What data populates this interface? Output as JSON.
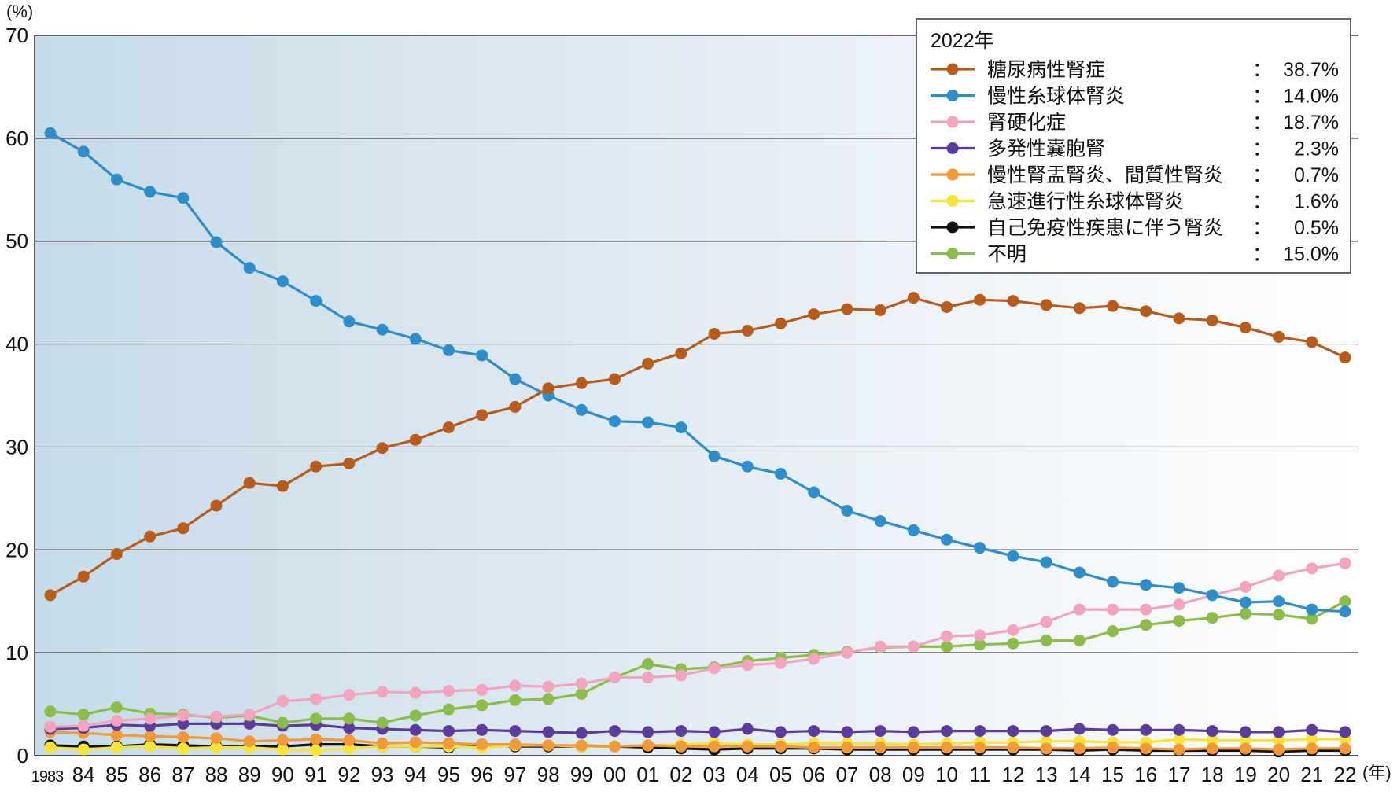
{
  "chart_data": {
    "type": "line",
    "ylabel_unit": "(%)",
    "xlabel_unit": "(年)",
    "ylim": [
      0,
      70
    ],
    "yticks": [
      0,
      10,
      20,
      30,
      40,
      50,
      60,
      70
    ],
    "grid": true,
    "categories": [
      "1983",
      "84",
      "85",
      "86",
      "87",
      "88",
      "89",
      "90",
      "91",
      "92",
      "93",
      "94",
      "95",
      "96",
      "97",
      "98",
      "99",
      "00",
      "01",
      "02",
      "03",
      "04",
      "05",
      "06",
      "07",
      "08",
      "09",
      "10",
      "11",
      "12",
      "13",
      "14",
      "15",
      "16",
      "17",
      "18",
      "19",
      "20",
      "21",
      "22"
    ],
    "legend_title": "2022年",
    "legend_position": "top-right",
    "series": [
      {
        "name": "糖尿病性腎症",
        "value_2022": "38.7%",
        "color": "#b85c1e",
        "values": [
          15.6,
          17.4,
          19.6,
          21.3,
          22.1,
          24.3,
          26.5,
          26.2,
          28.1,
          28.4,
          29.9,
          30.7,
          31.9,
          33.1,
          33.9,
          35.7,
          36.2,
          36.6,
          38.1,
          39.1,
          41.0,
          41.3,
          42.0,
          42.9,
          43.4,
          43.3,
          44.5,
          43.6,
          44.3,
          44.2,
          43.8,
          43.5,
          43.7,
          43.2,
          42.5,
          42.3,
          41.6,
          40.7,
          40.2,
          38.7
        ]
      },
      {
        "name": "慢性糸球体腎炎",
        "value_2022": "14.0%",
        "color": "#2f8dc9",
        "values": [
          60.5,
          58.7,
          56.0,
          54.8,
          54.2,
          49.9,
          47.4,
          46.1,
          44.2,
          42.2,
          41.4,
          40.5,
          39.4,
          38.9,
          36.6,
          35.0,
          33.6,
          32.5,
          32.4,
          31.9,
          29.1,
          28.1,
          27.4,
          25.6,
          23.8,
          22.8,
          21.9,
          21.0,
          20.2,
          19.4,
          18.8,
          17.8,
          16.9,
          16.6,
          16.3,
          15.6,
          14.9,
          15.0,
          14.2,
          14.0
        ]
      },
      {
        "name": "腎硬化症",
        "value_2022": "18.7%",
        "color": "#f2a3bd",
        "values": [
          2.8,
          2.9,
          3.4,
          3.6,
          3.9,
          3.8,
          4.0,
          5.3,
          5.5,
          5.9,
          6.2,
          6.1,
          6.3,
          6.4,
          6.8,
          6.7,
          7.0,
          7.6,
          7.6,
          7.8,
          8.5,
          8.8,
          9.0,
          9.4,
          10.0,
          10.6,
          10.6,
          11.6,
          11.7,
          12.2,
          13.0,
          14.2,
          14.2,
          14.2,
          14.7,
          15.6,
          16.4,
          17.5,
          18.2,
          18.7
        ]
      },
      {
        "name": "多発性嚢胞腎",
        "value_2022": "2.3%",
        "color": "#5c3c9a",
        "values": [
          2.6,
          2.7,
          3.0,
          2.9,
          3.1,
          3.1,
          3.1,
          2.9,
          3.0,
          2.7,
          2.6,
          2.5,
          2.4,
          2.5,
          2.4,
          2.3,
          2.2,
          2.4,
          2.3,
          2.4,
          2.3,
          2.6,
          2.3,
          2.4,
          2.3,
          2.4,
          2.3,
          2.4,
          2.4,
          2.4,
          2.4,
          2.6,
          2.5,
          2.5,
          2.5,
          2.4,
          2.3,
          2.3,
          2.5,
          2.3
        ]
      },
      {
        "name": "慢性腎盂腎炎、間質性腎炎",
        "value_2022": "0.7%",
        "color": "#f29a3a",
        "values": [
          2.3,
          2.2,
          2.0,
          1.9,
          1.8,
          1.7,
          1.4,
          1.5,
          1.6,
          1.5,
          1.2,
          1.3,
          1.2,
          1.1,
          1.1,
          1.0,
          1.0,
          0.9,
          1.0,
          0.9,
          0.9,
          0.9,
          0.9,
          0.8,
          0.8,
          0.8,
          0.8,
          0.8,
          0.8,
          0.8,
          0.7,
          0.7,
          0.8,
          0.7,
          0.6,
          0.7,
          0.7,
          0.6,
          0.7,
          0.7
        ]
      },
      {
        "name": "急速進行性糸球体腎炎",
        "value_2022": "1.6%",
        "color": "#f7e43a",
        "values": [
          0.8,
          0.6,
          0.8,
          0.9,
          0.7,
          0.8,
          0.8,
          0.6,
          0.5,
          0.7,
          0.9,
          0.9,
          0.9,
          0.8,
          1.0,
          1.0,
          0.9,
          0.9,
          1.0,
          1.1,
          1.2,
          1.1,
          1.1,
          1.2,
          1.2,
          1.2,
          1.1,
          1.2,
          1.3,
          1.3,
          1.4,
          1.4,
          1.3,
          1.3,
          1.6,
          1.5,
          1.5,
          1.5,
          1.6,
          1.6
        ]
      },
      {
        "name": "自己免疫性疾患に伴う腎炎",
        "value_2022": "0.5%",
        "color": "#111111",
        "values": [
          1.0,
          0.9,
          0.9,
          1.1,
          1.0,
          0.9,
          0.9,
          0.9,
          1.1,
          1.1,
          0.9,
          0.9,
          0.8,
          1.1,
          0.9,
          0.9,
          0.9,
          0.9,
          0.8,
          0.7,
          0.6,
          0.7,
          0.7,
          0.7,
          0.6,
          0.6,
          0.6,
          0.6,
          0.6,
          0.6,
          0.6,
          0.5,
          0.6,
          0.5,
          0.5,
          0.5,
          0.5,
          0.4,
          0.5,
          0.5
        ]
      },
      {
        "name": "不明",
        "value_2022": "15.0%",
        "color": "#8cbd4a",
        "values": [
          4.3,
          4.0,
          4.7,
          4.1,
          4.0,
          3.7,
          3.9,
          3.2,
          3.6,
          3.6,
          3.2,
          3.9,
          4.5,
          4.9,
          5.4,
          5.5,
          6.0,
          7.6,
          8.9,
          8.4,
          8.6,
          9.2,
          9.5,
          9.8,
          10.1,
          10.5,
          10.6,
          10.6,
          10.8,
          10.9,
          11.2,
          11.2,
          12.1,
          12.7,
          13.1,
          13.4,
          13.8,
          13.7,
          13.3,
          15.0
        ]
      }
    ]
  }
}
